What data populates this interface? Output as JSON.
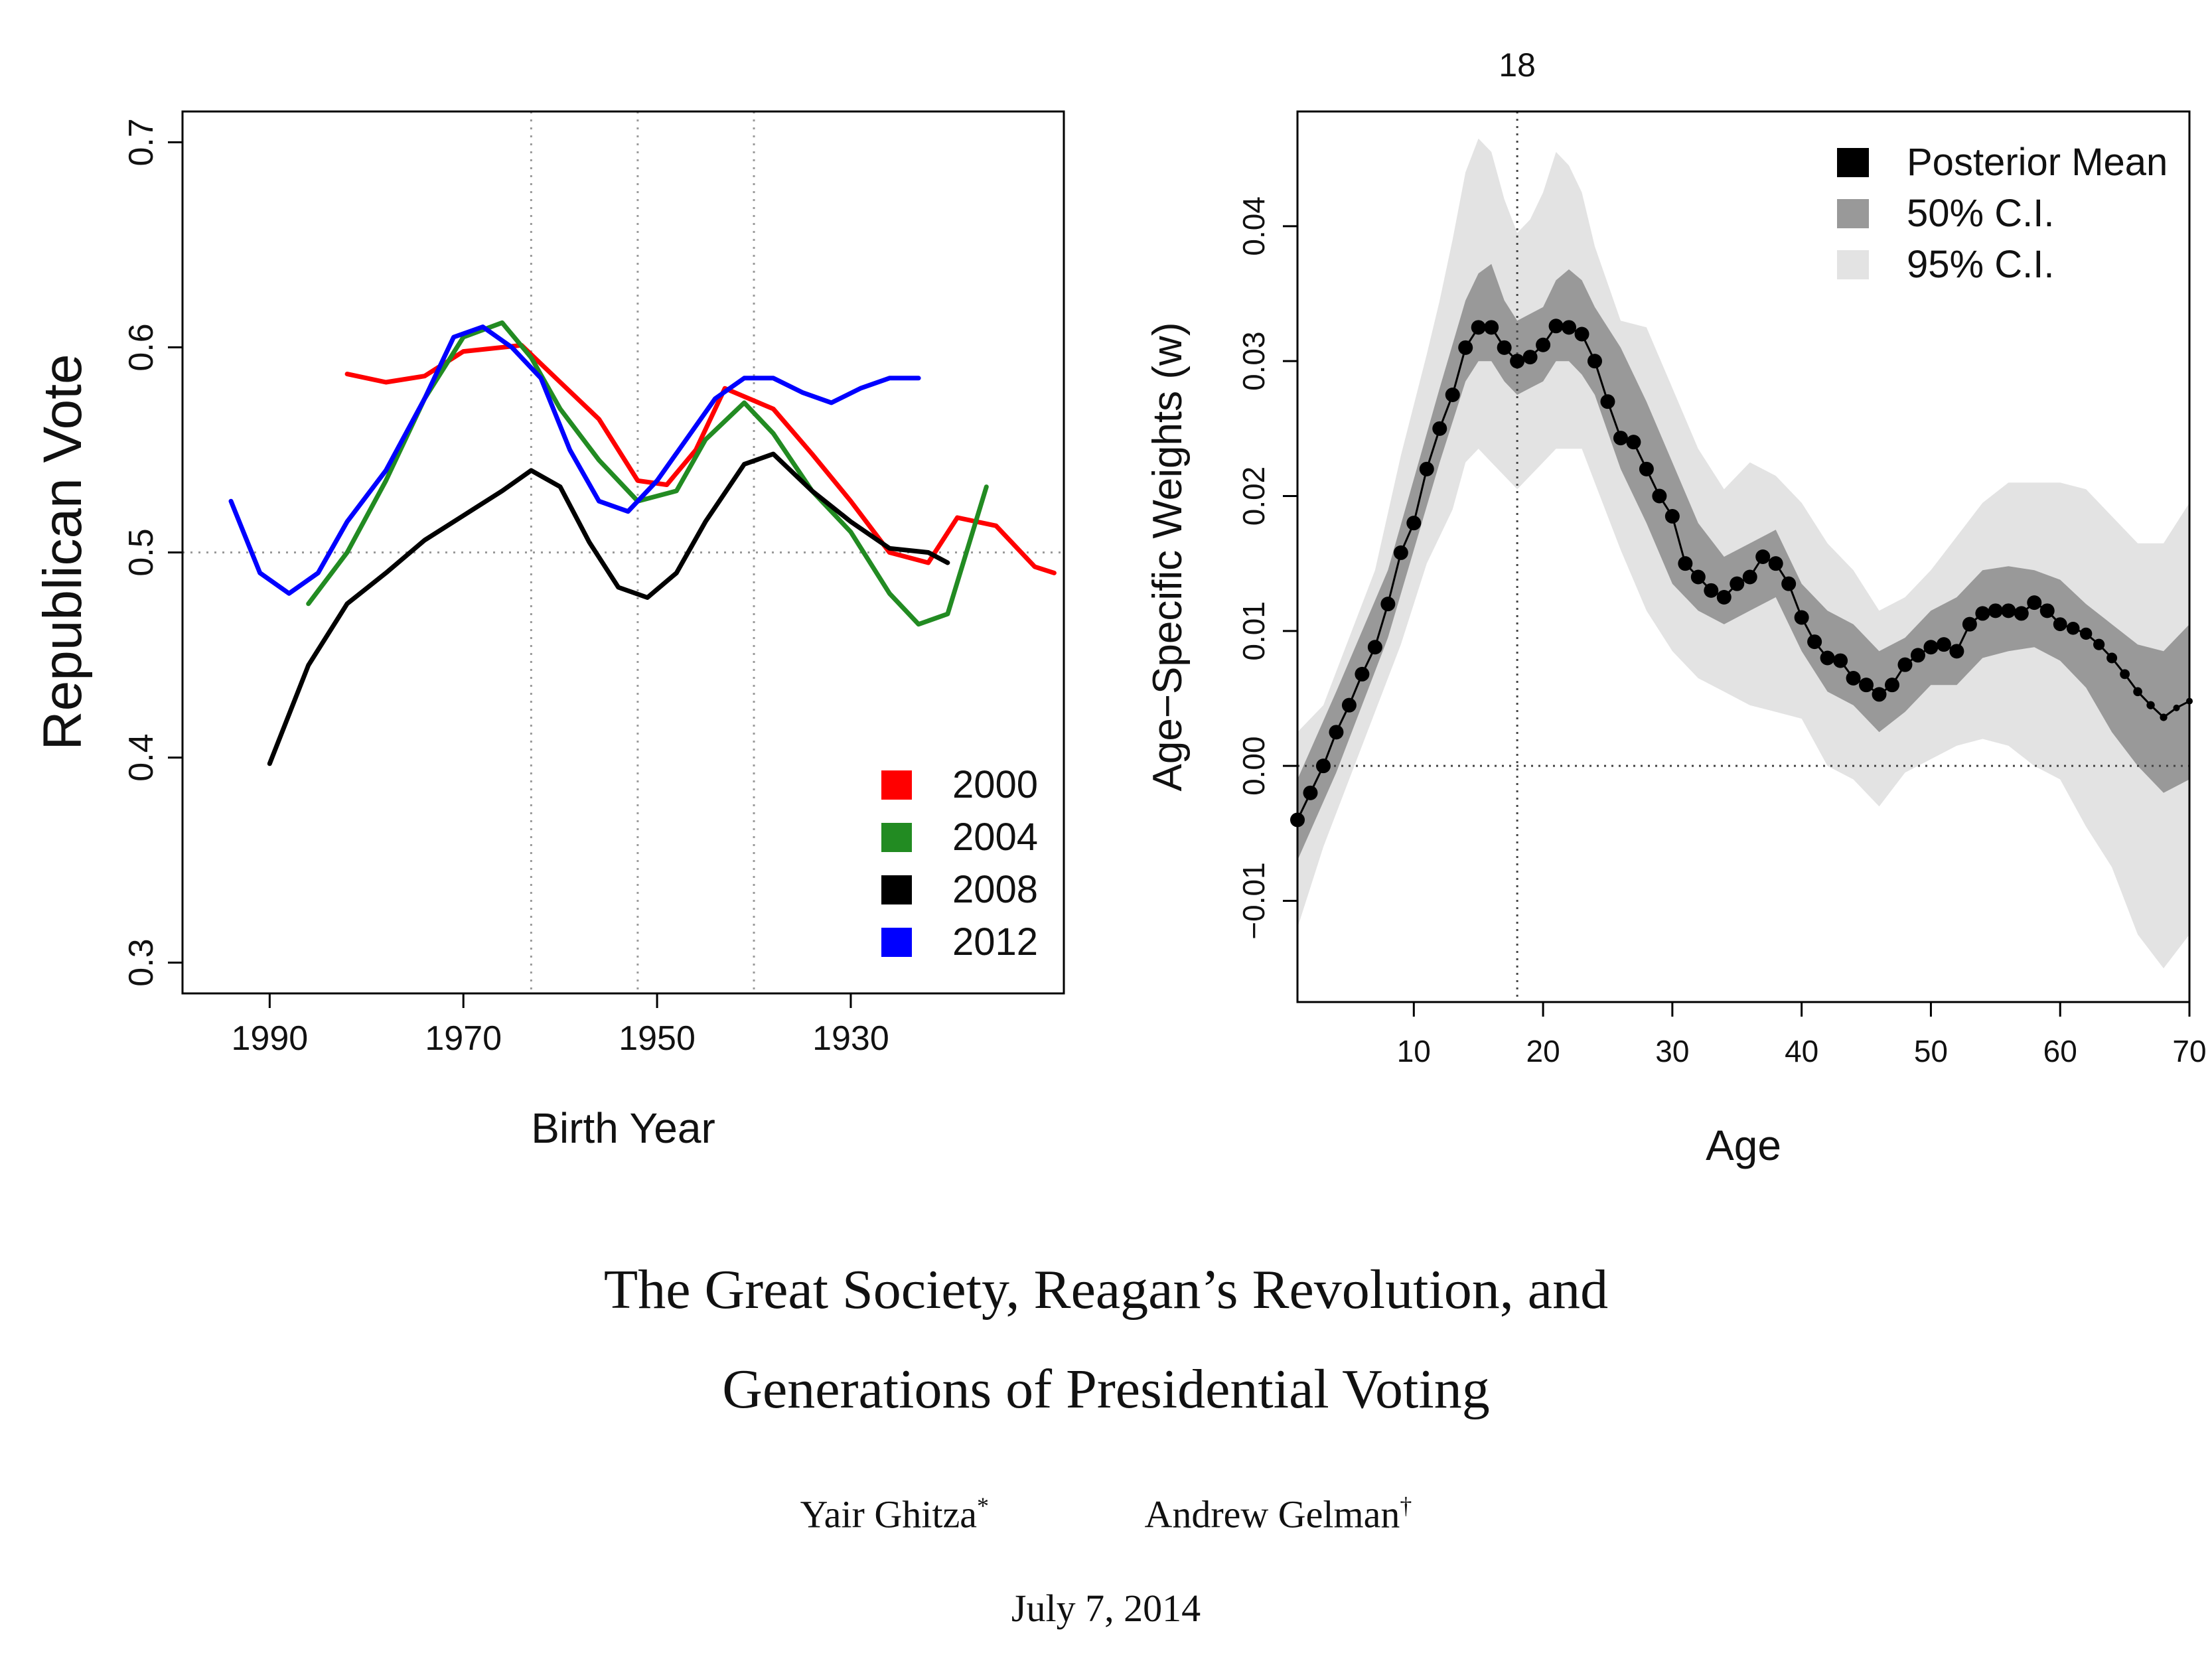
{
  "colors": {
    "s2000": "#ff0000",
    "s2004": "#228b22",
    "s2008": "#000000",
    "s2012": "#0000ff",
    "ci95": "#e3e3e3",
    "ci50": "#999999",
    "mean": "#000000"
  },
  "chart_data": [
    {
      "type": "line",
      "xlabel": "Birth Year",
      "ylabel": "Republican Vote",
      "xlim": [
        1999,
        1908
      ],
      "ylim": [
        0.285,
        0.715
      ],
      "x_reversed": true,
      "xticks": [
        "1990",
        "1970",
        "1950",
        "1930"
      ],
      "xtick_values": [
        1990,
        1970,
        1950,
        1930
      ],
      "yticks": [
        "0.3",
        "0.4",
        "0.5",
        "0.6",
        "0.7"
      ],
      "ytick_values": [
        0.3,
        0.4,
        0.5,
        0.6,
        0.7
      ],
      "vlines": [
        1963,
        1952,
        1940
      ],
      "hline": 0.5,
      "legend": {
        "position": "bottom-right",
        "entries": [
          "2000",
          "2004",
          "2008",
          "2012"
        ]
      },
      "series": [
        {
          "name": "2000",
          "color_key": "s2000",
          "x": [
            1982,
            1978,
            1974,
            1970,
            1964,
            1960,
            1956,
            1952,
            1949,
            1946,
            1943,
            1938,
            1934,
            1930,
            1926,
            1922,
            1919,
            1915,
            1911,
            1909
          ],
          "y": [
            0.587,
            0.583,
            0.586,
            0.598,
            0.601,
            0.583,
            0.565,
            0.535,
            0.533,
            0.55,
            0.58,
            0.57,
            0.548,
            0.525,
            0.5,
            0.495,
            0.517,
            0.513,
            0.493,
            0.49
          ]
        },
        {
          "name": "2004",
          "color_key": "s2004",
          "x": [
            1986,
            1982,
            1978,
            1974,
            1970,
            1966,
            1963,
            1960,
            1956,
            1952,
            1948,
            1945,
            1941,
            1938,
            1934,
            1930,
            1926,
            1923,
            1920,
            1916
          ],
          "y": [
            0.475,
            0.5,
            0.535,
            0.575,
            0.605,
            0.612,
            0.595,
            0.57,
            0.545,
            0.525,
            0.53,
            0.555,
            0.573,
            0.558,
            0.53,
            0.51,
            0.48,
            0.465,
            0.47,
            0.532
          ]
        },
        {
          "name": "2008",
          "color_key": "s2008",
          "x": [
            1990,
            1986,
            1982,
            1978,
            1974,
            1970,
            1966,
            1963,
            1960,
            1957,
            1954,
            1951,
            1948,
            1945,
            1941,
            1938,
            1934,
            1930,
            1926,
            1922,
            1920
          ],
          "y": [
            0.397,
            0.445,
            0.475,
            0.49,
            0.506,
            0.518,
            0.53,
            0.54,
            0.532,
            0.505,
            0.483,
            0.478,
            0.49,
            0.515,
            0.543,
            0.548,
            0.53,
            0.515,
            0.502,
            0.5,
            0.495
          ]
        },
        {
          "name": "2012",
          "color_key": "s2012",
          "x": [
            1994,
            1991,
            1988,
            1985,
            1982,
            1978,
            1974,
            1971,
            1968,
            1965,
            1962,
            1959,
            1956,
            1953,
            1950,
            1947,
            1944,
            1941,
            1938,
            1935,
            1932,
            1929,
            1926,
            1923
          ],
          "y": [
            0.525,
            0.49,
            0.48,
            0.49,
            0.515,
            0.54,
            0.575,
            0.605,
            0.61,
            0.6,
            0.585,
            0.55,
            0.525,
            0.52,
            0.535,
            0.555,
            0.575,
            0.585,
            0.585,
            0.578,
            0.573,
            0.58,
            0.585,
            0.585
          ]
        }
      ]
    },
    {
      "type": "line",
      "xlabel": "Age",
      "ylabel": "Age−Specific Weights (w)",
      "xlim": [
        1,
        70
      ],
      "ylim": [
        -0.0175,
        0.0485
      ],
      "xticks": [
        "10",
        "20",
        "30",
        "40",
        "50",
        "60",
        "70"
      ],
      "xtick_values": [
        10,
        20,
        30,
        40,
        50,
        60,
        70
      ],
      "yticks": [
        "−0.01",
        "0.00",
        "0.01",
        "0.02",
        "0.03",
        "0.04"
      ],
      "ytick_values": [
        -0.01,
        0.0,
        0.01,
        0.02,
        0.03,
        0.04
      ],
      "vline": 18,
      "vline_label": "18",
      "hline": 0.0,
      "legend": {
        "position": "top-right",
        "entries": [
          "Posterior Mean",
          "50% C.I.",
          "95% C.I."
        ]
      },
      "series": [
        {
          "name": "Posterior Mean",
          "color_key": "mean",
          "x": [
            1,
            2,
            3,
            4,
            5,
            6,
            7,
            8,
            9,
            10,
            11,
            12,
            13,
            14,
            15,
            16,
            17,
            18,
            19,
            20,
            21,
            22,
            23,
            24,
            25,
            26,
            27,
            28,
            29,
            30,
            31,
            32,
            33,
            34,
            35,
            36,
            37,
            38,
            39,
            40,
            41,
            42,
            43,
            44,
            45,
            46,
            47,
            48,
            49,
            50,
            51,
            52,
            53,
            54,
            55,
            56,
            57,
            58,
            59,
            60,
            61,
            62,
            63,
            64,
            65,
            66,
            67,
            68,
            69,
            70
          ],
          "y": [
            -0.004,
            -0.002,
            0.0,
            0.0025,
            0.0045,
            0.0068,
            0.0088,
            0.012,
            0.0158,
            0.018,
            0.022,
            0.025,
            0.0275,
            0.031,
            0.0325,
            0.0325,
            0.031,
            0.03,
            0.0303,
            0.0312,
            0.0326,
            0.0325,
            0.032,
            0.03,
            0.027,
            0.0243,
            0.024,
            0.022,
            0.02,
            0.0185,
            0.015,
            0.014,
            0.013,
            0.0125,
            0.0135,
            0.014,
            0.0155,
            0.015,
            0.0135,
            0.011,
            0.0092,
            0.008,
            0.0078,
            0.0065,
            0.006,
            0.0053,
            0.006,
            0.0075,
            0.0082,
            0.0088,
            0.009,
            0.0085,
            0.0105,
            0.0113,
            0.0115,
            0.0115,
            0.0113,
            0.0121,
            0.0115,
            0.0105,
            0.0102,
            0.0098,
            0.009,
            0.008,
            0.0068,
            0.0055,
            0.0045,
            0.0036,
            0.0043,
            0.0048
          ]
        },
        {
          "name": "50% C.I.",
          "color_key": "ci50",
          "x": [
            1,
            4,
            8,
            12,
            14,
            15,
            16,
            17,
            18,
            19,
            20,
            21,
            22,
            23,
            24,
            26,
            28,
            30,
            32,
            34,
            36,
            38,
            40,
            42,
            44,
            46,
            48,
            50,
            52,
            54,
            56,
            58,
            60,
            62,
            64,
            66,
            68,
            70
          ],
          "lower": [
            -0.007,
            -0.0005,
            0.0095,
            0.0225,
            0.0285,
            0.03,
            0.03,
            0.0285,
            0.0275,
            0.028,
            0.0285,
            0.03,
            0.03,
            0.029,
            0.0275,
            0.022,
            0.018,
            0.0135,
            0.0115,
            0.0105,
            0.0115,
            0.0125,
            0.0085,
            0.0055,
            0.0045,
            0.0025,
            0.004,
            0.006,
            0.006,
            0.008,
            0.0085,
            0.0088,
            0.0078,
            0.0058,
            0.0025,
            0.0,
            -0.002,
            -0.001
          ],
          "upper": [
            -0.001,
            0.0055,
            0.0145,
            0.028,
            0.0345,
            0.0365,
            0.0372,
            0.0345,
            0.033,
            0.0335,
            0.034,
            0.036,
            0.0368,
            0.036,
            0.034,
            0.031,
            0.027,
            0.0225,
            0.018,
            0.0155,
            0.0165,
            0.0175,
            0.0135,
            0.0115,
            0.0105,
            0.0085,
            0.0095,
            0.0115,
            0.0125,
            0.0145,
            0.0148,
            0.0145,
            0.0138,
            0.012,
            0.0105,
            0.009,
            0.0085,
            0.0105
          ]
        },
        {
          "name": "95% C.I.",
          "color_key": "ci95",
          "x": [
            1,
            3,
            5,
            7,
            9,
            11,
            12,
            13,
            14,
            15,
            16,
            17,
            18,
            19,
            20,
            21,
            22,
            23,
            24,
            26,
            28,
            30,
            32,
            34,
            36,
            38,
            40,
            42,
            44,
            46,
            48,
            50,
            52,
            54,
            56,
            58,
            60,
            62,
            64,
            66,
            68,
            70
          ],
          "lower": [
            -0.012,
            -0.006,
            -0.001,
            0.004,
            0.009,
            0.015,
            0.017,
            0.019,
            0.0225,
            0.0235,
            0.0225,
            0.0215,
            0.0205,
            0.0215,
            0.0225,
            0.0235,
            0.0235,
            0.0235,
            0.021,
            0.016,
            0.0115,
            0.0085,
            0.0065,
            0.0055,
            0.0045,
            0.004,
            0.0035,
            0.0,
            -0.001,
            -0.003,
            -0.0005,
            0.0005,
            0.0015,
            0.002,
            0.0015,
            0.0,
            -0.001,
            -0.0045,
            -0.0075,
            -0.0125,
            -0.015,
            -0.0125
          ],
          "upper": [
            0.0025,
            0.0045,
            0.0095,
            0.0145,
            0.023,
            0.0305,
            0.0345,
            0.039,
            0.044,
            0.0465,
            0.0455,
            0.042,
            0.0395,
            0.0405,
            0.0425,
            0.0455,
            0.0445,
            0.0425,
            0.0385,
            0.033,
            0.0325,
            0.028,
            0.0235,
            0.0205,
            0.0225,
            0.0215,
            0.0195,
            0.0165,
            0.0145,
            0.0115,
            0.0125,
            0.0145,
            0.017,
            0.0195,
            0.021,
            0.021,
            0.021,
            0.0205,
            0.0185,
            0.0165,
            0.0165,
            0.0195
          ]
        }
      ]
    }
  ],
  "paper": {
    "title_line1": "The Great Society, Reagan’s Revolution, and",
    "title_line2": "Generations of Presidential Voting",
    "author1": "Yair Ghitza",
    "author1_mark": "*",
    "author2": "Andrew Gelman",
    "author2_mark": "†",
    "date": "July 7, 2014"
  }
}
